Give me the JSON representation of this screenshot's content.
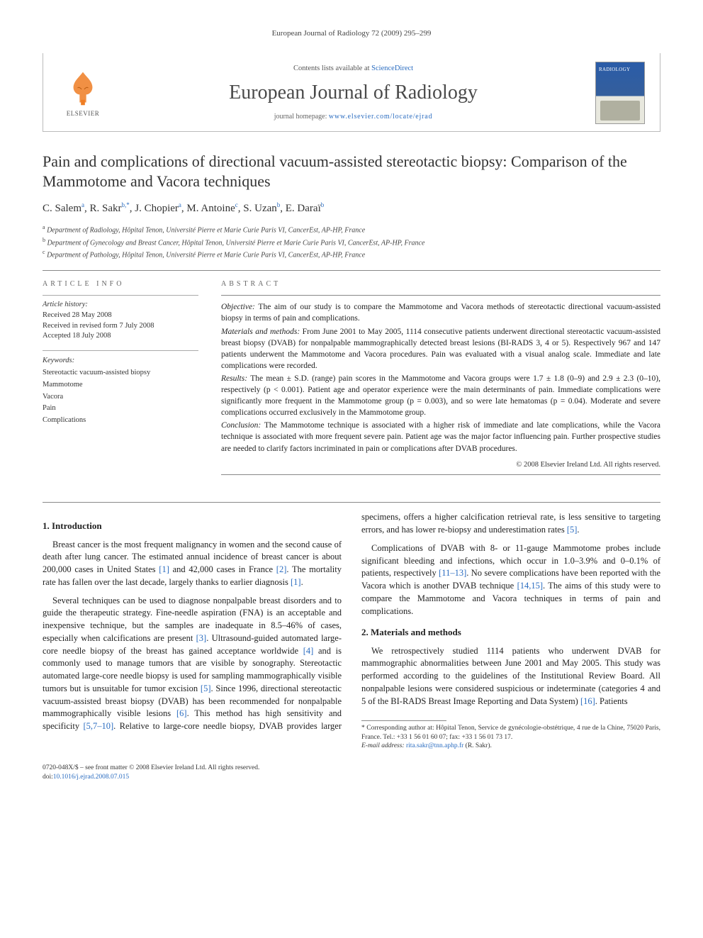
{
  "running_head": "European Journal of Radiology 72 (2009) 295–299",
  "banner": {
    "contents_prefix": "Contents lists available at ",
    "contents_link": "ScienceDirect",
    "journal_name": "European Journal of Radiology",
    "homepage_prefix": "journal homepage: ",
    "homepage_url": "www.elsevier.com/locate/ejrad",
    "publisher_word": "ELSEVIER",
    "cover_label": "RADIOLOGY",
    "logo_fill": "#ef7d23",
    "link_color": "#2a6cc0"
  },
  "title": "Pain and complications of directional vacuum-assisted stereotactic biopsy: Comparison of the Mammotome and Vacora techniques",
  "authors_html": "C. Salem<sup>a</sup>, R. Sakr<sup>b,*</sup>, J. Chopier<sup>a</sup>, M. Antoine<sup>c</sup>, S. Uzan<sup>b</sup>, E. Daraï<sup>b</sup>",
  "affiliations": [
    {
      "mark": "a",
      "text": "Department of Radiology, Hôpital Tenon, Université Pierre et Marie Curie Paris VI, CancerEst, AP-HP, France"
    },
    {
      "mark": "b",
      "text": "Department of Gynecology and Breast Cancer, Hôpital Tenon, Université Pierre et Marie Curie Paris VI, CancerEst, AP-HP, France"
    },
    {
      "mark": "c",
      "text": "Department of Pathology, Hôpital Tenon, Université Pierre et Marie Curie Paris VI, CancerEst, AP-HP, France"
    }
  ],
  "info": {
    "head": "ARTICLE INFO",
    "history_label": "Article history:",
    "history": [
      "Received 28 May 2008",
      "Received in revised form 7 July 2008",
      "Accepted 18 July 2008"
    ],
    "keywords_label": "Keywords:",
    "keywords": [
      "Stereotactic vacuum-assisted biopsy",
      "Mammotome",
      "Vacora",
      "Pain",
      "Complications"
    ]
  },
  "abstract": {
    "head": "ABSTRACT",
    "sections": [
      {
        "label": "Objective:",
        "text": " The aim of our study is to compare the Mammotome and Vacora methods of stereotactic directional vacuum-assisted biopsy in terms of pain and complications."
      },
      {
        "label": "Materials and methods:",
        "text": " From June 2001 to May 2005, 1114 consecutive patients underwent directional stereotactic vacuum-assisted breast biopsy (DVAB) for nonpalpable mammographically detected breast lesions (BI-RADS 3, 4 or 5). Respectively 967 and 147 patients underwent the Mammotome and Vacora procedures. Pain was evaluated with a visual analog scale. Immediate and late complications were recorded."
      },
      {
        "label": "Results:",
        "text": " The mean ± S.D. (range) pain scores in the Mammotome and Vacora groups were 1.7 ± 1.8 (0–9) and 2.9 ± 2.3 (0–10), respectively (p < 0.001). Patient age and operator experience were the main determinants of pain. Immediate complications were significantly more frequent in the Mammotome group (p = 0.003), and so were late hematomas (p = 0.04). Moderate and severe complications occurred exclusively in the Mammotome group."
      },
      {
        "label": "Conclusion:",
        "text": " The Mammotome technique is associated with a higher risk of immediate and late complications, while the Vacora technique is associated with more frequent severe pain. Patient age was the major factor influencing pain. Further prospective studies are needed to clarify factors incriminated in pain or complications after DVAB procedures."
      }
    ],
    "copyright": "© 2008 Elsevier Ireland Ltd. All rights reserved."
  },
  "sections": {
    "s1": {
      "heading": "1.  Introduction",
      "p1": "Breast cancer is the most frequent malignancy in women and the second cause of death after lung cancer. The estimated annual incidence of breast cancer is about 200,000 cases in United States ",
      "r1": "[1]",
      "p1b": " and 42,000 cases in France ",
      "r2": "[2]",
      "p1c": ". The mortality rate has fallen over the last decade, largely thanks to earlier diagnosis ",
      "r3": "[1]",
      "p1d": ".",
      "p2": "Several techniques can be used to diagnose nonpalpable breast disorders and to guide the therapeutic strategy. Fine-needle aspiration (FNA) is an acceptable and inexpensive technique, but the samples are inadequate in 8.5–46% of cases, especially when calcifications are present ",
      "r4": "[3]",
      "p2b": ". Ultrasound-guided automated large-core needle biopsy of the breast has gained acceptance worldwide ",
      "r5": "[4]",
      "p2c": " and is commonly used to manage tumors that are visible by sonography. Stereotactic automated large-core needle biopsy is used for sampling mammographically visible tumors but is unsuitable for tumor excision ",
      "r6": "[5]",
      "p2d": ". Since 1996, directional stereotactic vacuum-assisted breast biopsy (DVAB) has been recommended for nonpalpable mammographically visible lesions ",
      "r7": "[6]",
      "p2e": ". This method has high sensitivity and specificity ",
      "r8": "[5,7–10]",
      "p2f": ". Relative to large-core needle biopsy, DVAB provides larger specimens, offers a higher calcification retrieval rate, is less sensitive to targeting errors, and has lower re-biopsy and underestimation rates ",
      "r9": "[5]",
      "p2g": ".",
      "p3": "Complications of DVAB with 8- or 11-gauge Mammotome probes include significant bleeding and infections, which occur in 1.0–3.9% and 0–0.1% of patients, respectively ",
      "r10": "[11–13]",
      "p3b": ". No severe complications have been reported with the Vacora which is another DVAB technique ",
      "r11": "[14,15]",
      "p3c": ". The aims of this study were to compare the Mammotome and Vacora techniques in terms of pain and complications."
    },
    "s2": {
      "heading": "2.  Materials and methods",
      "p1": "We retrospectively studied 1114 patients who underwent DVAB for mammographic abnormalities between June 2001 and May 2005. This study was performed according to the guidelines of the Institutional Review Board. All nonpalpable lesions were considered suspicious or indeterminate (categories 4 and 5 of the BI-RADS Breast Image Reporting and Data System) ",
      "r1": "[16]",
      "p1b": ". Patients"
    }
  },
  "footnote": {
    "star": "*",
    "corr_label": " Corresponding author at: ",
    "corr_text": "Hôpital Tenon, Service de gynécologie-obstétrique, 4 rue de la Chine, 75020 Paris, France. Tel.: +33 1 56 01 60 07; fax: +33 1 56 01 73 17.",
    "email_label": "E-mail address: ",
    "email": "rita.sakr@tnn.aphp.fr",
    "email_who": " (R. Sakr)."
  },
  "footer": {
    "left1": "0720-048X/$ – see front matter © 2008 Elsevier Ireland Ltd. All rights reserved.",
    "left2_label": "doi:",
    "doi": "10.1016/j.ejrad.2008.07.015"
  }
}
